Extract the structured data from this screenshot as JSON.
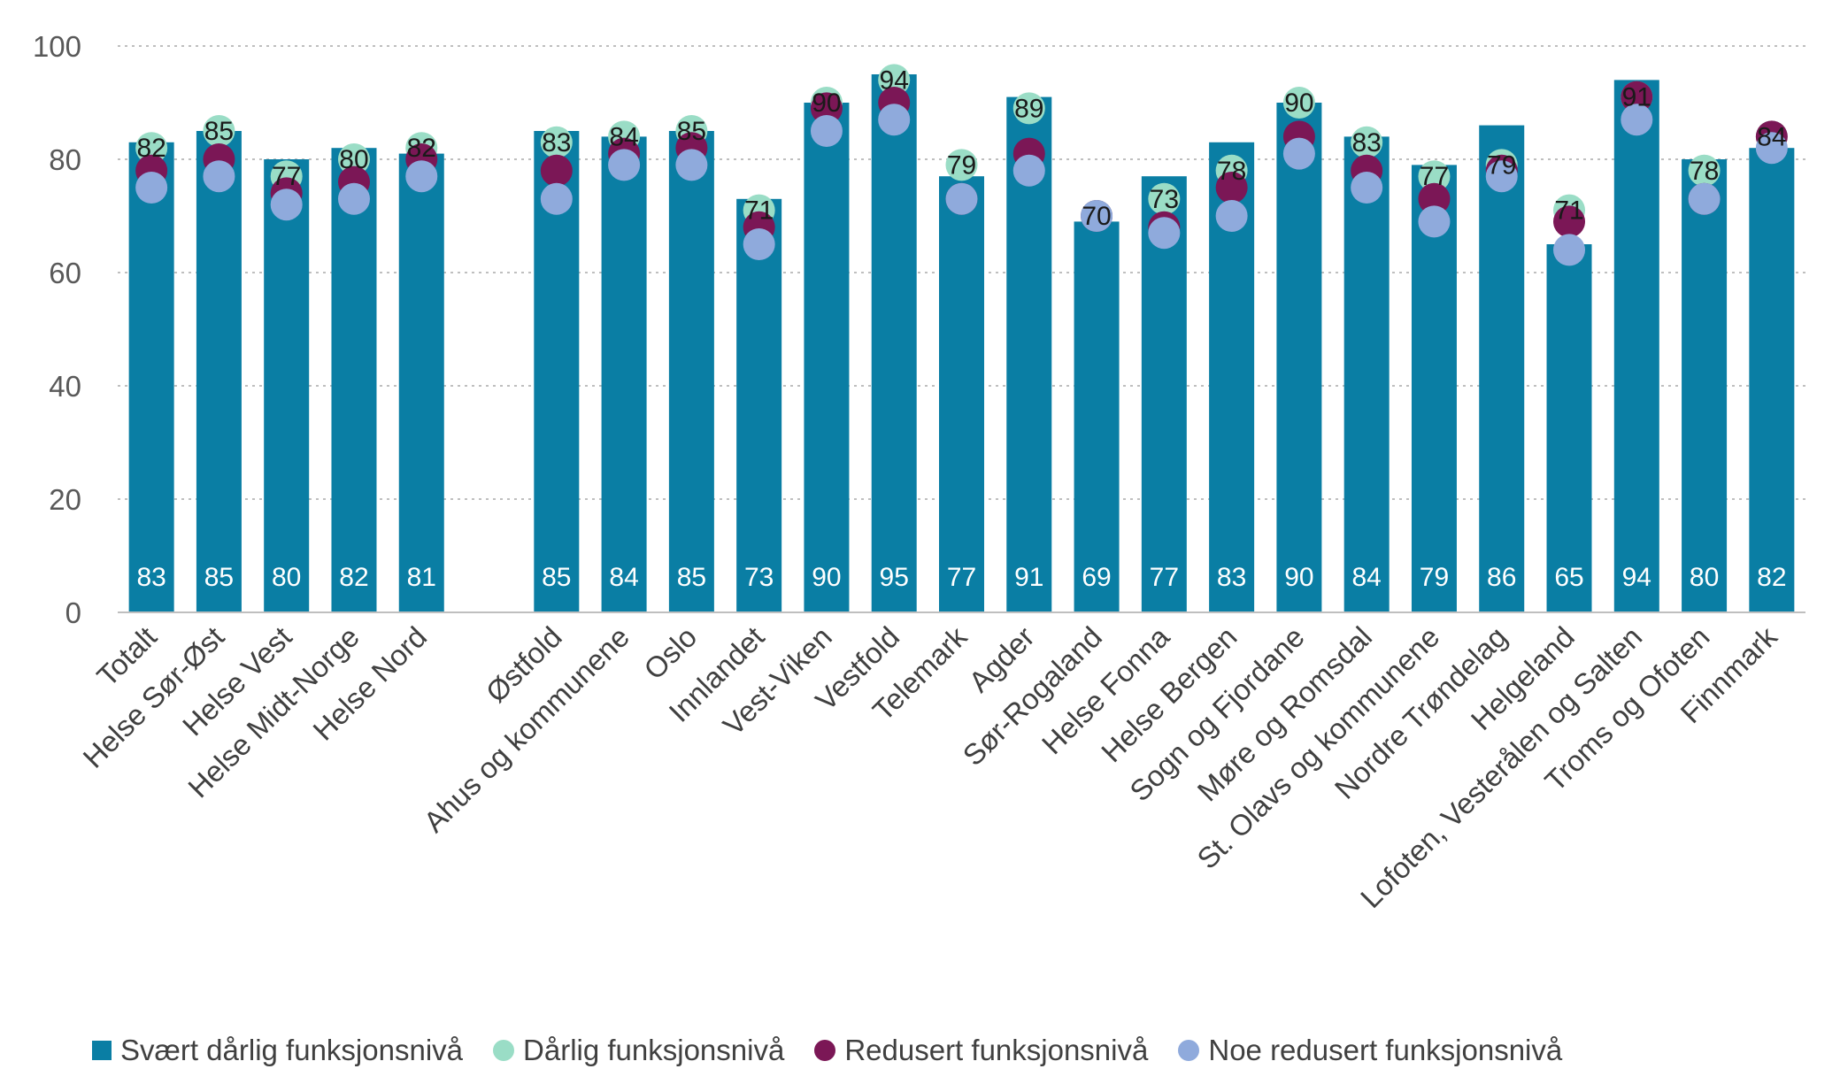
{
  "chart_data": {
    "type": "bar",
    "title": "",
    "xlabel": "",
    "ylabel": "",
    "ylim": [
      0,
      100
    ],
    "yticks": [
      0,
      20,
      40,
      60,
      80,
      100
    ],
    "grid": true,
    "legend_position": "bottom",
    "categories": [
      "Totalt",
      "Helse Sør-Øst",
      "Helse Vest",
      "Helse Midt-Norge",
      "Helse Nord",
      "",
      "Østfold",
      "Ahus og kommunene",
      "Oslo",
      "Innlandet",
      "Vest-Viken",
      "Vestfold",
      "Telemark",
      "Agder",
      "Sør-Rogaland",
      "Helse Fonna",
      "Helse Bergen",
      "Sogn og Fjordane",
      "Møre og Romsdal",
      "St. Olavs og kommunene",
      "Nordre Trøndelag",
      "Helgeland",
      "Lofoten, Vesterålen og Salten",
      "Troms og Ofoten",
      "Finnmark"
    ],
    "series": [
      {
        "name": "Svært dårlig funksjonsnivå",
        "type": "bar",
        "color": "#0A7EA4",
        "values": [
          83,
          85,
          80,
          82,
          81,
          null,
          85,
          84,
          85,
          73,
          90,
          95,
          77,
          91,
          69,
          77,
          83,
          90,
          84,
          79,
          86,
          65,
          94,
          80,
          82
        ]
      },
      {
        "name": "Dårlig funksjonsnivå",
        "type": "marker",
        "color": "#9ADDC6",
        "values": [
          82,
          85,
          77,
          80,
          82,
          null,
          83,
          84,
          85,
          71,
          90,
          94,
          79,
          89,
          70,
          73,
          78,
          90,
          83,
          77,
          79,
          71,
          91,
          78,
          84
        ]
      },
      {
        "name": "Redusert funksjonsnivå",
        "type": "marker",
        "color": "#7B1756",
        "values": [
          78,
          80,
          74,
          76,
          80,
          null,
          78,
          81,
          82,
          68,
          89,
          90,
          73,
          81,
          70,
          68,
          75,
          84,
          78,
          73,
          78,
          69,
          91,
          73,
          84
        ]
      },
      {
        "name": "Noe redusert funksjonsnivå",
        "type": "marker",
        "color": "#8FAADC",
        "values": [
          75,
          77,
          72,
          73,
          77,
          null,
          73,
          79,
          79,
          65,
          85,
          87,
          73,
          78,
          70,
          67,
          70,
          81,
          75,
          69,
          77,
          64,
          87,
          73,
          82
        ]
      }
    ],
    "label_series": "Dårlig funksjonsnivå"
  }
}
